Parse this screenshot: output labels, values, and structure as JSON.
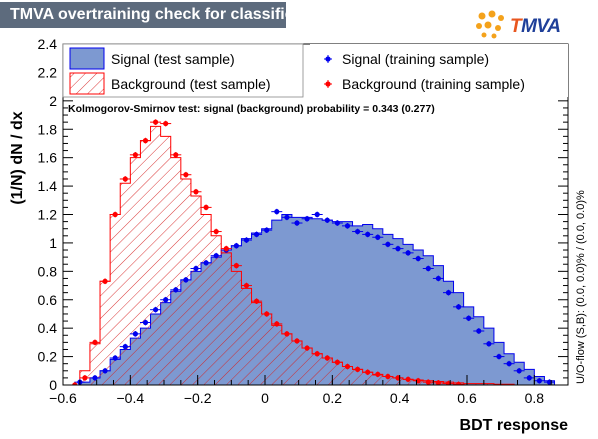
{
  "title": "TMVA overtraining check for classifier: BDT",
  "logo": {
    "letter": "T",
    "rest": "MVA"
  },
  "colors": {
    "signal_fill": "#7d99d1",
    "signal_line": "#0000ee",
    "background_line": "#ff0000",
    "title_bar": "#5d6b7d"
  },
  "ks_text": "Kolmogorov-Smirnov test: signal (background) probability = 0.343 (0.277)",
  "overflow_text": "U/O-flow (S,B): (0.0, 0.0)% / (0.0, 0.0)%",
  "chart_data": {
    "type": "area",
    "xlabel": "BDT response",
    "ylabel": "(1/N) dN / dx",
    "xlim": [
      -0.6,
      0.9
    ],
    "ylim": [
      0,
      2.4
    ],
    "xticks": [
      "-0.6",
      "-0.4",
      "-0.2",
      "0",
      "0.2",
      "0.4",
      "0.6",
      "0.8"
    ],
    "yticks": [
      "0",
      "0.2",
      "0.4",
      "0.6",
      "0.8",
      "1",
      "1.2",
      "1.4",
      "1.6",
      "1.8",
      "2",
      "2.2",
      "2.4"
    ],
    "bin_edges": [
      -0.61,
      -0.58,
      -0.55,
      -0.52,
      -0.49,
      -0.46,
      -0.43,
      -0.4,
      -0.37,
      -0.34,
      -0.31,
      -0.28,
      -0.25,
      -0.22,
      -0.19,
      -0.16,
      -0.13,
      -0.1,
      -0.07,
      -0.04,
      -0.01,
      0.02,
      0.05,
      0.08,
      0.11,
      0.14,
      0.17,
      0.2,
      0.23,
      0.26,
      0.29,
      0.32,
      0.35,
      0.38,
      0.41,
      0.44,
      0.47,
      0.5,
      0.53,
      0.56,
      0.59,
      0.62,
      0.65,
      0.68,
      0.71,
      0.74,
      0.77,
      0.8,
      0.83,
      0.86,
      0.89
    ],
    "legend": [
      {
        "label": "Signal (test sample)",
        "style": "filled"
      },
      {
        "label": "Background (test sample)",
        "style": "hatched"
      },
      {
        "label": "Signal (training sample)",
        "style": "marker"
      },
      {
        "label": "Background (training sample)",
        "style": "marker"
      }
    ],
    "series": [
      {
        "name": "Signal (test sample)",
        "values": [
          0.0,
          0.0,
          0.02,
          0.05,
          0.1,
          0.18,
          0.25,
          0.33,
          0.4,
          0.5,
          0.58,
          0.66,
          0.74,
          0.8,
          0.86,
          0.9,
          0.95,
          0.98,
          1.03,
          1.07,
          1.1,
          1.16,
          1.2,
          1.18,
          1.18,
          1.17,
          1.16,
          1.15,
          1.15,
          1.12,
          1.13,
          1.1,
          1.06,
          1.03,
          0.99,
          0.95,
          0.91,
          0.84,
          0.73,
          0.65,
          0.55,
          0.48,
          0.4,
          0.3,
          0.22,
          0.16,
          0.11,
          0.06,
          0.03,
          0.0
        ]
      },
      {
        "name": "Background (test sample)",
        "values": [
          0.0,
          0.0,
          0.1,
          0.29,
          0.73,
          1.2,
          1.42,
          1.6,
          1.72,
          1.82,
          1.75,
          1.6,
          1.45,
          1.33,
          1.2,
          1.05,
          0.93,
          0.8,
          0.68,
          0.58,
          0.5,
          0.42,
          0.36,
          0.31,
          0.26,
          0.22,
          0.19,
          0.16,
          0.13,
          0.11,
          0.09,
          0.07,
          0.06,
          0.05,
          0.04,
          0.035,
          0.03,
          0.025,
          0.02,
          0.015,
          0.01,
          0.01,
          0.01,
          0.005,
          0.005,
          0.0,
          0.0,
          0.0,
          0.0,
          0.0
        ]
      },
      {
        "name": "Signal (training sample)",
        "x": [
          -0.55,
          -0.505,
          -0.475,
          -0.445,
          -0.415,
          -0.385,
          -0.355,
          -0.325,
          -0.295,
          -0.265,
          -0.235,
          -0.205,
          -0.175,
          -0.145,
          -0.115,
          -0.085,
          -0.055,
          -0.025,
          0.005,
          0.035,
          0.065,
          0.095,
          0.125,
          0.155,
          0.185,
          0.215,
          0.245,
          0.275,
          0.305,
          0.335,
          0.365,
          0.395,
          0.425,
          0.455,
          0.485,
          0.515,
          0.545,
          0.575,
          0.605,
          0.635,
          0.665,
          0.695,
          0.725,
          0.755,
          0.785,
          0.815,
          0.845
        ],
        "values": [
          0.02,
          0.05,
          0.1,
          0.19,
          0.27,
          0.36,
          0.44,
          0.53,
          0.6,
          0.67,
          0.74,
          0.82,
          0.86,
          0.91,
          0.95,
          0.98,
          1.02,
          1.06,
          1.09,
          1.22,
          1.18,
          1.14,
          1.17,
          1.2,
          1.16,
          1.14,
          1.12,
          1.08,
          1.06,
          1.04,
          0.99,
          0.96,
          0.93,
          0.89,
          0.82,
          0.75,
          0.65,
          0.55,
          0.47,
          0.38,
          0.29,
          0.2,
          0.15,
          0.1,
          0.05,
          0.03,
          0.02
        ]
      },
      {
        "name": "Background (training sample)",
        "x": [
          -0.565,
          -0.535,
          -0.505,
          -0.475,
          -0.445,
          -0.415,
          -0.385,
          -0.355,
          -0.325,
          -0.295,
          -0.265,
          -0.235,
          -0.205,
          -0.175,
          -0.145,
          -0.115,
          -0.085,
          -0.055,
          -0.025,
          0.005,
          0.035,
          0.065,
          0.095,
          0.125,
          0.155,
          0.185,
          0.215,
          0.245,
          0.275,
          0.305,
          0.335,
          0.365,
          0.395,
          0.425,
          0.455,
          0.485,
          0.515,
          0.545,
          0.575
        ],
        "values": [
          0.0,
          0.05,
          0.3,
          0.73,
          1.2,
          1.45,
          1.62,
          1.72,
          1.85,
          1.84,
          1.62,
          1.48,
          1.36,
          1.25,
          1.08,
          0.96,
          0.84,
          0.7,
          0.59,
          0.5,
          0.43,
          0.36,
          0.31,
          0.26,
          0.22,
          0.19,
          0.16,
          0.13,
          0.11,
          0.09,
          0.075,
          0.06,
          0.05,
          0.04,
          0.03,
          0.02,
          0.015,
          0.01,
          0.005
        ]
      }
    ]
  }
}
